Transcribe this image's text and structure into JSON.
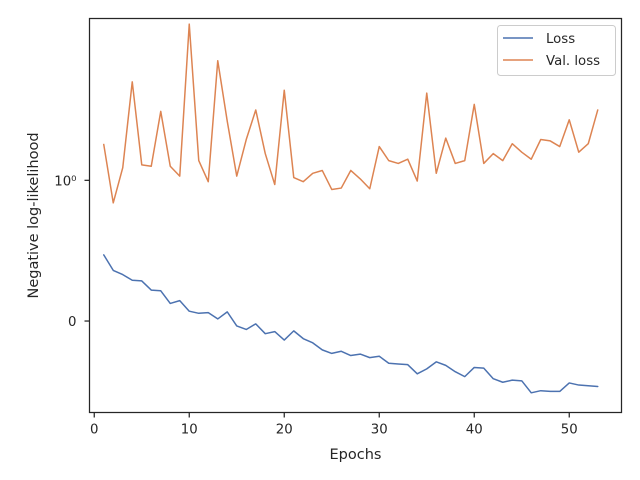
{
  "chart_data": {
    "type": "line",
    "xlabel": "Epochs",
    "ylabel": "Negative log-likelihood",
    "xlim": [
      -0.5,
      55.5
    ],
    "xticks": [
      0,
      10,
      20,
      30,
      40,
      50
    ],
    "xtick_labels": [
      "0",
      "10",
      "20",
      "30",
      "40",
      "50"
    ],
    "y_tick_values": [
      -1.0,
      0.0
    ],
    "y_tick_labels": [
      "0",
      "10⁰"
    ],
    "ylim": [
      -1.65,
      1.15
    ],
    "grid": false,
    "legend_position": "top-right",
    "series": [
      {
        "name": "Loss",
        "color": "#4c72b0",
        "x": [
          1,
          2,
          3,
          4,
          5,
          6,
          7,
          8,
          9,
          10,
          11,
          12,
          13,
          14,
          15,
          16,
          17,
          18,
          19,
          20,
          21,
          22,
          23,
          24,
          25,
          26,
          27,
          28,
          29,
          30,
          31,
          32,
          33,
          34,
          35,
          36,
          37,
          38,
          39,
          40,
          41,
          42,
          43,
          44,
          45,
          46,
          47,
          48,
          49,
          50,
          51,
          52,
          53
        ],
        "values": [
          -0.53,
          -0.64,
          -0.67,
          -0.71,
          -0.715,
          -0.78,
          -0.785,
          -0.875,
          -0.855,
          -0.93,
          -0.945,
          -0.94,
          -0.985,
          -0.935,
          -1.035,
          -1.06,
          -1.02,
          -1.09,
          -1.075,
          -1.135,
          -1.07,
          -1.125,
          -1.155,
          -1.205,
          -1.23,
          -1.215,
          -1.245,
          -1.235,
          -1.26,
          -1.25,
          -1.3,
          -1.305,
          -1.31,
          -1.375,
          -1.34,
          -1.29,
          -1.315,
          -1.36,
          -1.395,
          -1.33,
          -1.335,
          -1.41,
          -1.435,
          -1.42,
          -1.425,
          -1.51,
          -1.495,
          -1.5,
          -1.5,
          -1.44,
          -1.455,
          -1.46,
          -1.465
        ]
      },
      {
        "name": "Val. loss",
        "color": "#dd8452",
        "x": [
          1,
          2,
          3,
          4,
          5,
          6,
          7,
          8,
          9,
          10,
          11,
          12,
          13,
          14,
          15,
          16,
          17,
          18,
          19,
          20,
          21,
          22,
          23,
          24,
          25,
          26,
          27,
          28,
          29,
          30,
          31,
          32,
          33,
          34,
          35,
          36,
          37,
          38,
          39,
          40,
          41,
          42,
          43,
          44,
          45,
          46,
          47,
          48,
          49,
          50,
          51,
          52,
          53
        ],
        "values": [
          0.255,
          -0.16,
          0.09,
          0.7,
          0.11,
          0.1,
          0.49,
          0.1,
          0.03,
          1.11,
          0.14,
          -0.01,
          0.85,
          0.42,
          0.03,
          0.29,
          0.5,
          0.19,
          -0.03,
          0.64,
          0.02,
          -0.01,
          0.05,
          0.07,
          -0.065,
          -0.055,
          0.07,
          0.01,
          -0.06,
          0.24,
          0.14,
          0.12,
          0.15,
          -0.005,
          0.62,
          0.05,
          0.3,
          0.12,
          0.14,
          0.54,
          0.12,
          0.19,
          0.14,
          0.26,
          0.2,
          0.15,
          0.29,
          0.28,
          0.24,
          0.43,
          0.2,
          0.26,
          0.5
        ]
      }
    ]
  }
}
